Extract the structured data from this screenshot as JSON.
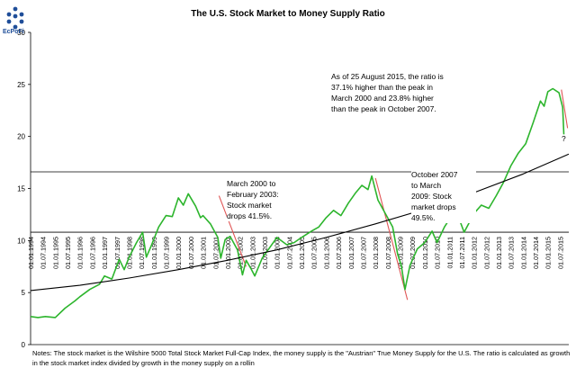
{
  "logo": {
    "text": "EcPoFi"
  },
  "chart_data": {
    "type": "line",
    "title": "The U.S. Stock Market to Money Supply Ratio",
    "ylim": [
      0,
      30
    ],
    "yticks": [
      0,
      5,
      10,
      15,
      20,
      25,
      30
    ],
    "xlim": [
      1994.0,
      2015.85
    ],
    "xticks": [
      "01.01.1994",
      "01.07.1994",
      "01.01.1995",
      "01.07.1995",
      "01.01.1996",
      "01.07.1996",
      "01.01.1997",
      "01.07.1997",
      "01.01.1998",
      "01.07.1998",
      "01.01.1999",
      "01.07.1999",
      "01.01.2000",
      "01.07.2000",
      "01.01.2001",
      "01.07.2001",
      "01.01.2002",
      "01.07.2002",
      "01.01.2003",
      "01.07.2003",
      "01.01.2004",
      "01.07.2004",
      "01.01.2005",
      "01.07.2005",
      "01.01.2006",
      "01.07.2006",
      "01.01.2007",
      "01.07.2007",
      "01.01.2008",
      "01.07.2008",
      "01.01.2009",
      "01.07.2009",
      "01.01.2010",
      "01.07.2010",
      "01.01.2011",
      "01.07.2011",
      "01.01.2012",
      "01.07.2012",
      "01.01.2013",
      "01.07.2013",
      "01.01.2014",
      "01.07.2014",
      "01.01.2015",
      "01.07.2015"
    ],
    "grid": false,
    "series": [
      {
        "color": "#2db52d",
        "x": [
          1994.0,
          1994.3,
          1994.6,
          1995.0,
          1995.4,
          1995.8,
          1996.0,
          1996.4,
          1996.8,
          1997.0,
          1997.3,
          1997.6,
          1997.8,
          1998.0,
          1998.3,
          1998.55,
          1998.7,
          1998.9,
          1999.2,
          1999.5,
          1999.75,
          2000.0,
          2000.2,
          2000.4,
          2000.7,
          2000.9,
          2001.0,
          2001.3,
          2001.6,
          2001.72,
          2001.9,
          2002.1,
          2002.4,
          2002.6,
          2002.75,
          2002.95,
          2003.1,
          2003.4,
          2003.7,
          2004.0,
          2004.4,
          2004.7,
          2005.0,
          2005.4,
          2005.7,
          2006.0,
          2006.3,
          2006.6,
          2006.9,
          2007.2,
          2007.45,
          2007.7,
          2007.85,
          2008.1,
          2008.4,
          2008.7,
          2008.9,
          2009.05,
          2009.2,
          2009.4,
          2009.7,
          2010.0,
          2010.3,
          2010.5,
          2010.8,
          2011.1,
          2011.3,
          2011.6,
          2011.8,
          2012.0,
          2012.3,
          2012.6,
          2012.9,
          2013.2,
          2013.5,
          2013.8,
          2014.1,
          2014.4,
          2014.7,
          2014.85,
          2015.0,
          2015.2,
          2015.45,
          2015.6,
          2015.65
        ],
        "y": [
          2.7,
          2.6,
          2.7,
          2.6,
          3.5,
          4.2,
          4.6,
          5.3,
          5.8,
          6.6,
          6.3,
          8.2,
          7.2,
          8.4,
          9.8,
          10.8,
          8.4,
          9.5,
          11.3,
          12.4,
          12.3,
          14.1,
          13.4,
          14.5,
          13.3,
          12.2,
          12.4,
          11.6,
          10.3,
          8.3,
          10.1,
          10.4,
          9.1,
          6.7,
          8.1,
          7.3,
          6.6,
          8.3,
          9.3,
          10.3,
          9.6,
          9.8,
          10.3,
          10.9,
          11.3,
          12.2,
          12.9,
          12.4,
          13.6,
          14.6,
          15.3,
          14.9,
          16.2,
          13.9,
          12.6,
          11.3,
          8.7,
          7.6,
          5.3,
          7.6,
          9.2,
          9.8,
          10.9,
          9.8,
          11.3,
          12.4,
          12.7,
          10.8,
          11.7,
          12.6,
          13.4,
          13.1,
          14.3,
          15.6,
          17.2,
          18.4,
          19.3,
          21.3,
          23.4,
          22.9,
          24.3,
          24.6,
          24.2,
          22.8,
          20.2
        ]
      },
      {
        "color": "#000000",
        "x": [
          1994.0,
          1996.0,
          1998.0,
          2000.0,
          2002.0,
          2004.0,
          2006.0,
          2008.0,
          2010.0,
          2012.0,
          2014.0,
          2015.85
        ],
        "y": [
          5.2,
          5.7,
          6.4,
          7.2,
          8.1,
          9.1,
          10.3,
          11.6,
          13.0,
          14.6,
          16.4,
          18.3
        ]
      }
    ],
    "hlines": [
      {
        "y": 16.6,
        "color": "#000000"
      },
      {
        "y": 10.8,
        "color": "#000000"
      }
    ],
    "trend_marks": [
      {
        "color": "#e05555",
        "x": [
          2001.65,
          2002.75
        ],
        "y": [
          14.3,
          7.5
        ]
      },
      {
        "color": "#e05555",
        "x": [
          2008.0,
          2009.3
        ],
        "y": [
          16.0,
          4.3
        ]
      },
      {
        "color": "#e05555",
        "x": [
          2015.55,
          2015.8
        ],
        "y": [
          24.5,
          20.8
        ]
      }
    ],
    "annotations": [
      {
        "id": "ann-2015",
        "lines": [
          "As of 25 August 2015,  the ratio is",
          "37.1% higher than the peak in",
          "March 2000 and 23.8% higher",
          "than the peak in October 2007."
        ]
      },
      {
        "id": "ann-2000",
        "lines": [
          "March 2000 to",
          "February 2003:",
          "Stock market",
          "drops 41.5%."
        ]
      },
      {
        "id": "ann-2007",
        "lines": [
          "October 2007",
          "to March",
          "2009:  Stock",
          "market drops",
          "49.5%."
        ]
      },
      {
        "id": "ann-q",
        "lines": [
          "?"
        ]
      }
    ],
    "notes": "Notes:  The stock market is the Wilshire 5000 Total Stock Market Full-Cap Index, the money  supply is the \"Austrian\" True Money Supply for the U.S. The  ratio is calculated as growth in the  stock market index divided by growth  in the money  supply on a rollin"
  }
}
